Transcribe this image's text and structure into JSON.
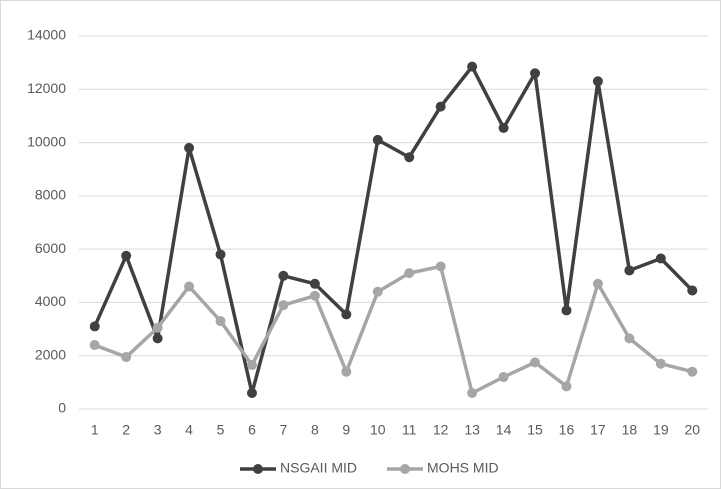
{
  "chart_data": {
    "type": "line",
    "categories": [
      "1",
      "2",
      "3",
      "4",
      "5",
      "6",
      "7",
      "8",
      "9",
      "10",
      "11",
      "12",
      "13",
      "14",
      "15",
      "16",
      "17",
      "18",
      "19",
      "20"
    ],
    "series": [
      {
        "name": "NSGAII MID",
        "color": "#404040",
        "values": [
          3100,
          5750,
          2650,
          9800,
          5800,
          600,
          5000,
          4700,
          3550,
          10100,
          9450,
          11350,
          12850,
          10550,
          12600,
          3700,
          12300,
          5200,
          5650,
          4450
        ]
      },
      {
        "name": "MOHS MID",
        "color": "#a6a6a6",
        "values": [
          2400,
          1950,
          3050,
          4600,
          3300,
          1650,
          3900,
          4250,
          1400,
          4400,
          5100,
          5350,
          600,
          1200,
          1750,
          850,
          4700,
          2650,
          1700,
          1400
        ]
      }
    ],
    "ylim": [
      0,
      14000
    ],
    "yticks": [
      0,
      2000,
      4000,
      6000,
      8000,
      10000,
      12000,
      14000
    ],
    "grid": true,
    "legend": "bottom"
  }
}
